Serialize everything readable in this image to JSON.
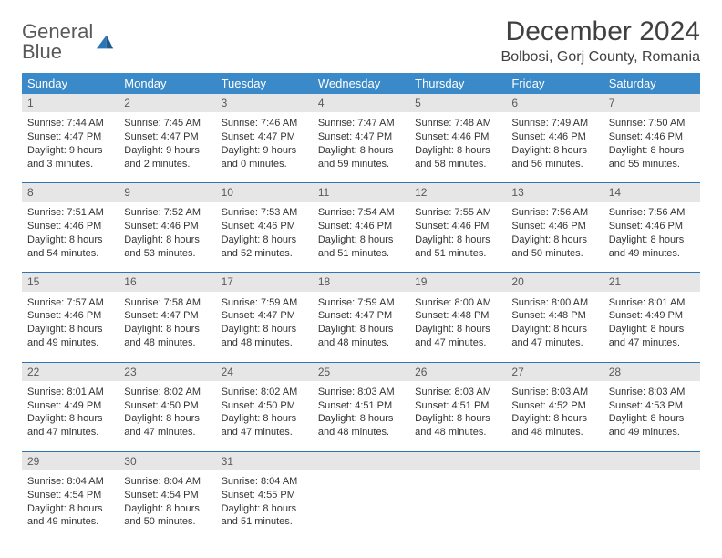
{
  "logo": {
    "line1": "General",
    "line2": "Blue"
  },
  "title": "December 2024",
  "location": "Bolbosi, Gorj County, Romania",
  "colors": {
    "header_bg": "#3a89c9",
    "header_text": "#ffffff",
    "daynum_bg": "#e6e6e6",
    "border": "#2e75b6",
    "logo_gray": "#595959",
    "logo_blue": "#2e75b6"
  },
  "day_headers": [
    "Sunday",
    "Monday",
    "Tuesday",
    "Wednesday",
    "Thursday",
    "Friday",
    "Saturday"
  ],
  "weeks": [
    [
      {
        "n": "1",
        "sr": "7:44 AM",
        "ss": "4:47 PM",
        "dl": "9 hours and 3 minutes."
      },
      {
        "n": "2",
        "sr": "7:45 AM",
        "ss": "4:47 PM",
        "dl": "9 hours and 2 minutes."
      },
      {
        "n": "3",
        "sr": "7:46 AM",
        "ss": "4:47 PM",
        "dl": "9 hours and 0 minutes."
      },
      {
        "n": "4",
        "sr": "7:47 AM",
        "ss": "4:47 PM",
        "dl": "8 hours and 59 minutes."
      },
      {
        "n": "5",
        "sr": "7:48 AM",
        "ss": "4:46 PM",
        "dl": "8 hours and 58 minutes."
      },
      {
        "n": "6",
        "sr": "7:49 AM",
        "ss": "4:46 PM",
        "dl": "8 hours and 56 minutes."
      },
      {
        "n": "7",
        "sr": "7:50 AM",
        "ss": "4:46 PM",
        "dl": "8 hours and 55 minutes."
      }
    ],
    [
      {
        "n": "8",
        "sr": "7:51 AM",
        "ss": "4:46 PM",
        "dl": "8 hours and 54 minutes."
      },
      {
        "n": "9",
        "sr": "7:52 AM",
        "ss": "4:46 PM",
        "dl": "8 hours and 53 minutes."
      },
      {
        "n": "10",
        "sr": "7:53 AM",
        "ss": "4:46 PM",
        "dl": "8 hours and 52 minutes."
      },
      {
        "n": "11",
        "sr": "7:54 AM",
        "ss": "4:46 PM",
        "dl": "8 hours and 51 minutes."
      },
      {
        "n": "12",
        "sr": "7:55 AM",
        "ss": "4:46 PM",
        "dl": "8 hours and 51 minutes."
      },
      {
        "n": "13",
        "sr": "7:56 AM",
        "ss": "4:46 PM",
        "dl": "8 hours and 50 minutes."
      },
      {
        "n": "14",
        "sr": "7:56 AM",
        "ss": "4:46 PM",
        "dl": "8 hours and 49 minutes."
      }
    ],
    [
      {
        "n": "15",
        "sr": "7:57 AM",
        "ss": "4:46 PM",
        "dl": "8 hours and 49 minutes."
      },
      {
        "n": "16",
        "sr": "7:58 AM",
        "ss": "4:47 PM",
        "dl": "8 hours and 48 minutes."
      },
      {
        "n": "17",
        "sr": "7:59 AM",
        "ss": "4:47 PM",
        "dl": "8 hours and 48 minutes."
      },
      {
        "n": "18",
        "sr": "7:59 AM",
        "ss": "4:47 PM",
        "dl": "8 hours and 48 minutes."
      },
      {
        "n": "19",
        "sr": "8:00 AM",
        "ss": "4:48 PM",
        "dl": "8 hours and 47 minutes."
      },
      {
        "n": "20",
        "sr": "8:00 AM",
        "ss": "4:48 PM",
        "dl": "8 hours and 47 minutes."
      },
      {
        "n": "21",
        "sr": "8:01 AM",
        "ss": "4:49 PM",
        "dl": "8 hours and 47 minutes."
      }
    ],
    [
      {
        "n": "22",
        "sr": "8:01 AM",
        "ss": "4:49 PM",
        "dl": "8 hours and 47 minutes."
      },
      {
        "n": "23",
        "sr": "8:02 AM",
        "ss": "4:50 PM",
        "dl": "8 hours and 47 minutes."
      },
      {
        "n": "24",
        "sr": "8:02 AM",
        "ss": "4:50 PM",
        "dl": "8 hours and 47 minutes."
      },
      {
        "n": "25",
        "sr": "8:03 AM",
        "ss": "4:51 PM",
        "dl": "8 hours and 48 minutes."
      },
      {
        "n": "26",
        "sr": "8:03 AM",
        "ss": "4:51 PM",
        "dl": "8 hours and 48 minutes."
      },
      {
        "n": "27",
        "sr": "8:03 AM",
        "ss": "4:52 PM",
        "dl": "8 hours and 48 minutes."
      },
      {
        "n": "28",
        "sr": "8:03 AM",
        "ss": "4:53 PM",
        "dl": "8 hours and 49 minutes."
      }
    ],
    [
      {
        "n": "29",
        "sr": "8:04 AM",
        "ss": "4:54 PM",
        "dl": "8 hours and 49 minutes."
      },
      {
        "n": "30",
        "sr": "8:04 AM",
        "ss": "4:54 PM",
        "dl": "8 hours and 50 minutes."
      },
      {
        "n": "31",
        "sr": "8:04 AM",
        "ss": "4:55 PM",
        "dl": "8 hours and 51 minutes."
      },
      null,
      null,
      null,
      null
    ]
  ],
  "labels": {
    "sunrise": "Sunrise:",
    "sunset": "Sunset:",
    "daylight": "Daylight:"
  }
}
